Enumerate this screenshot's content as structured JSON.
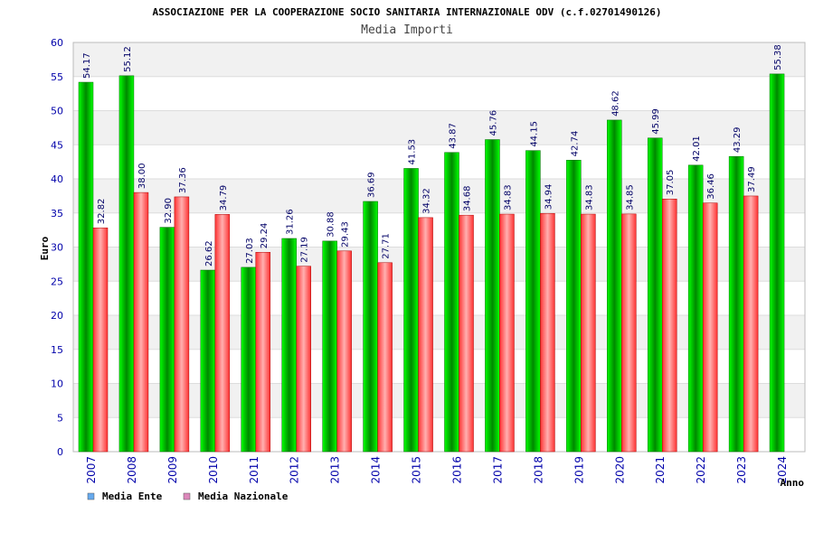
{
  "chart_data": {
    "type": "bar",
    "title": "ASSOCIAZIONE PER LA COOPERAZIONE SOCIO SANITARIA INTERNAZIONALE ODV (c.f.02701490126)",
    "subtitle": "Media Importi",
    "ylabel": "Euro",
    "xlabel": "Anno",
    "ylim": [
      0,
      60
    ],
    "yticks": [
      0,
      5,
      10,
      15,
      20,
      25,
      30,
      35,
      40,
      45,
      50,
      55,
      60
    ],
    "grid": true,
    "legend_position": "bottom-left",
    "categories": [
      "2007",
      "2008",
      "2009",
      "2010",
      "2011",
      "2012",
      "2013",
      "2014",
      "2015",
      "2016",
      "2017",
      "2018",
      "2019",
      "2020",
      "2021",
      "2022",
      "2023",
      "2024"
    ],
    "series": [
      {
        "name": "Media Ente",
        "legend_color": "#66aaee",
        "bar_color": "#00aa00",
        "values": [
          54.17,
          55.12,
          32.9,
          26.62,
          27.03,
          31.26,
          30.88,
          36.69,
          41.53,
          43.87,
          45.76,
          44.15,
          42.74,
          48.62,
          45.99,
          42.01,
          43.29,
          55.38
        ],
        "labels": [
          "54.17",
          "55.12",
          "32.90",
          "26.62",
          "27.03",
          "31.26",
          "30.88",
          "36.69",
          "41.53",
          "43.87",
          "45.76",
          "44.15",
          "42.74",
          "48.62",
          "45.99",
          "42.01",
          "43.29",
          "55.38"
        ]
      },
      {
        "name": "Media Nazionale",
        "legend_color": "#dd88bb",
        "bar_color": "#ee2222",
        "values": [
          32.82,
          38.0,
          37.36,
          34.79,
          29.24,
          27.19,
          29.43,
          27.71,
          34.32,
          34.68,
          34.83,
          34.94,
          34.83,
          34.85,
          37.05,
          36.46,
          37.49,
          null
        ],
        "labels": [
          "32.82",
          "38.00",
          "37.36",
          "34.79",
          "29.24",
          "27.19",
          "29.43",
          "27.71",
          "34.32",
          "34.68",
          "34.83",
          "34.94",
          "34.83",
          "34.85",
          "37.05",
          "36.46",
          "37.49",
          null
        ]
      }
    ]
  }
}
